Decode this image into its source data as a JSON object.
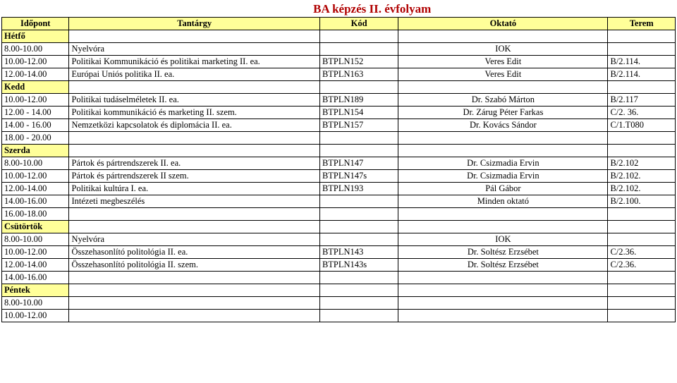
{
  "title": "BA képzés II. évfolyam",
  "colors": {
    "title_color": "#b00000",
    "header_bg": "#ffff99",
    "border": "#000000",
    "background": "#ffffff"
  },
  "headers": {
    "time": "Időpont",
    "subject": "Tantárgy",
    "code": "Kód",
    "instructor": "Oktató",
    "room": "Terem"
  },
  "days": {
    "mon": "Hétfő",
    "tue": "Kedd",
    "wed": "Szerda",
    "thu": "Csütörtök",
    "fri": "Péntek"
  },
  "rows": {
    "mon": [
      {
        "time": "8.00-10.00",
        "subject": "Nyelvóra",
        "code": "",
        "instructor": "IOK",
        "room": ""
      },
      {
        "time": "10.00-12.00",
        "subject": "Politikai Kommunikáció és politikai marketing II. ea.",
        "code": "BTPLN152",
        "instructor": "Veres Edit",
        "room": "B/2.114."
      },
      {
        "time": "12.00-14.00",
        "subject": "Európai Uniós politika II. ea.",
        "code": "BTPLN163",
        "instructor": "Veres Edit",
        "room": "B/2.114."
      }
    ],
    "tue": [
      {
        "time": "10.00-12.00",
        "subject": "Politikai tudáselméletek II. ea.",
        "code": "BTPLN189",
        "instructor": "Dr. Szabó Márton",
        "room": "B/2.117"
      },
      {
        "time": "12.00 - 14.00",
        "subject": "Politikai kommunikáció és marketing II. szem.",
        "code": "BTPLN154",
        "instructor": "Dr. Zárug Péter Farkas",
        "room": "C/2. 36."
      },
      {
        "time": "14.00 - 16.00",
        "subject": "Nemzetközi kapcsolatok és diplomácia II. ea.",
        "code": "BTPLN157",
        "instructor": "Dr. Kovács Sándor",
        "room": "C/1.T080"
      },
      {
        "time": "18.00 - 20.00",
        "subject": "",
        "code": "",
        "instructor": "",
        "room": ""
      }
    ],
    "wed": [
      {
        "time": "8.00-10.00",
        "subject": "Pártok és pártrendszerek II. ea.",
        "code": "BTPLN147",
        "instructor": "Dr. Csizmadia Ervin",
        "room": "B/2.102"
      },
      {
        "time": "10.00-12.00",
        "subject": "Pártok és pártrendszerek II szem.",
        "code": "BTPLN147s",
        "instructor": "Dr. Csizmadia Ervin",
        "room": "B/2.102."
      },
      {
        "time": "12.00-14.00",
        "subject": "Politikai kultúra I. ea.",
        "code": "BTPLN193",
        "instructor": "Pál Gábor",
        "room": "B/2.102."
      },
      {
        "time": "14.00-16.00",
        "subject": "Intézeti megbeszélés",
        "code": "",
        "instructor": "Minden oktató",
        "room": "B/2.100."
      },
      {
        "time": "16.00-18.00",
        "subject": "",
        "code": "",
        "instructor": "",
        "room": ""
      }
    ],
    "thu": [
      {
        "time": "8.00-10.00",
        "subject": "Nyelvóra",
        "code": "",
        "instructor": "IOK",
        "room": ""
      },
      {
        "time": "10.00-12.00",
        "subject": "Összehasonlító politológia II. ea.",
        "code": "BTPLN143",
        "instructor": "Dr. Soltész Erzsébet",
        "room": "C/2.36."
      },
      {
        "time": "12.00-14.00",
        "subject": "Összehasonlító politológia II. szem.",
        "code": "BTPLN143s",
        "instructor": "Dr. Soltész Erzsébet",
        "room": "C/2.36."
      },
      {
        "time": "14.00-16.00",
        "subject": "",
        "code": "",
        "instructor": "",
        "room": ""
      }
    ],
    "fri": [
      {
        "time": "8.00-10.00",
        "subject": "",
        "code": "",
        "instructor": "",
        "room": ""
      },
      {
        "time": "10.00-12.00",
        "subject": "",
        "code": "",
        "instructor": "",
        "room": ""
      }
    ]
  }
}
